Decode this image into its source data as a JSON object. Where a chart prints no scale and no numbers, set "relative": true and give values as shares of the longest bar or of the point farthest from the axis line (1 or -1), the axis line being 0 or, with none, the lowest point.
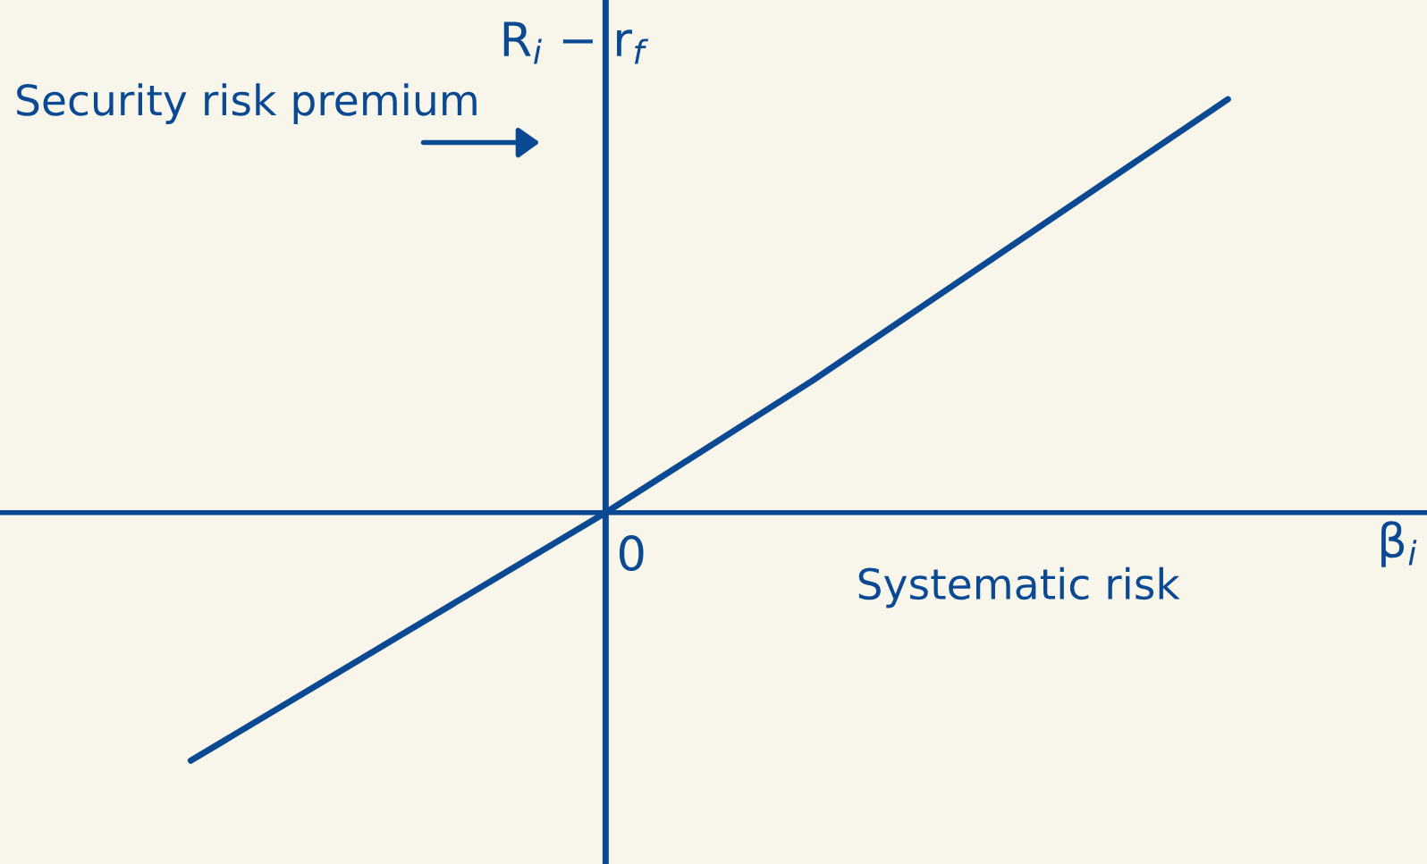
{
  "chart_data": {
    "type": "line",
    "relative": true,
    "xlabel": "Systematic risk",
    "ylabel": "Security risk premium",
    "categories": [
      null,
      null,
      null,
      null,
      null,
      null
    ],
    "series": [
      {
        "color": "#0b4a93",
        "values": [
          -0.6,
          -0.3,
          0,
          0.32,
          0.66,
          1
        ]
      }
    ],
    "ref_lines": [
      {
        "axis": "y",
        "value": 0,
        "color": "#0b4a93"
      }
    ],
    "annotations": [
      "β$_{i}$",
      "R$_{i}$ − r$_{f}$",
      "0"
    ],
    "marker": "none",
    "line_style": "solid"
  }
}
